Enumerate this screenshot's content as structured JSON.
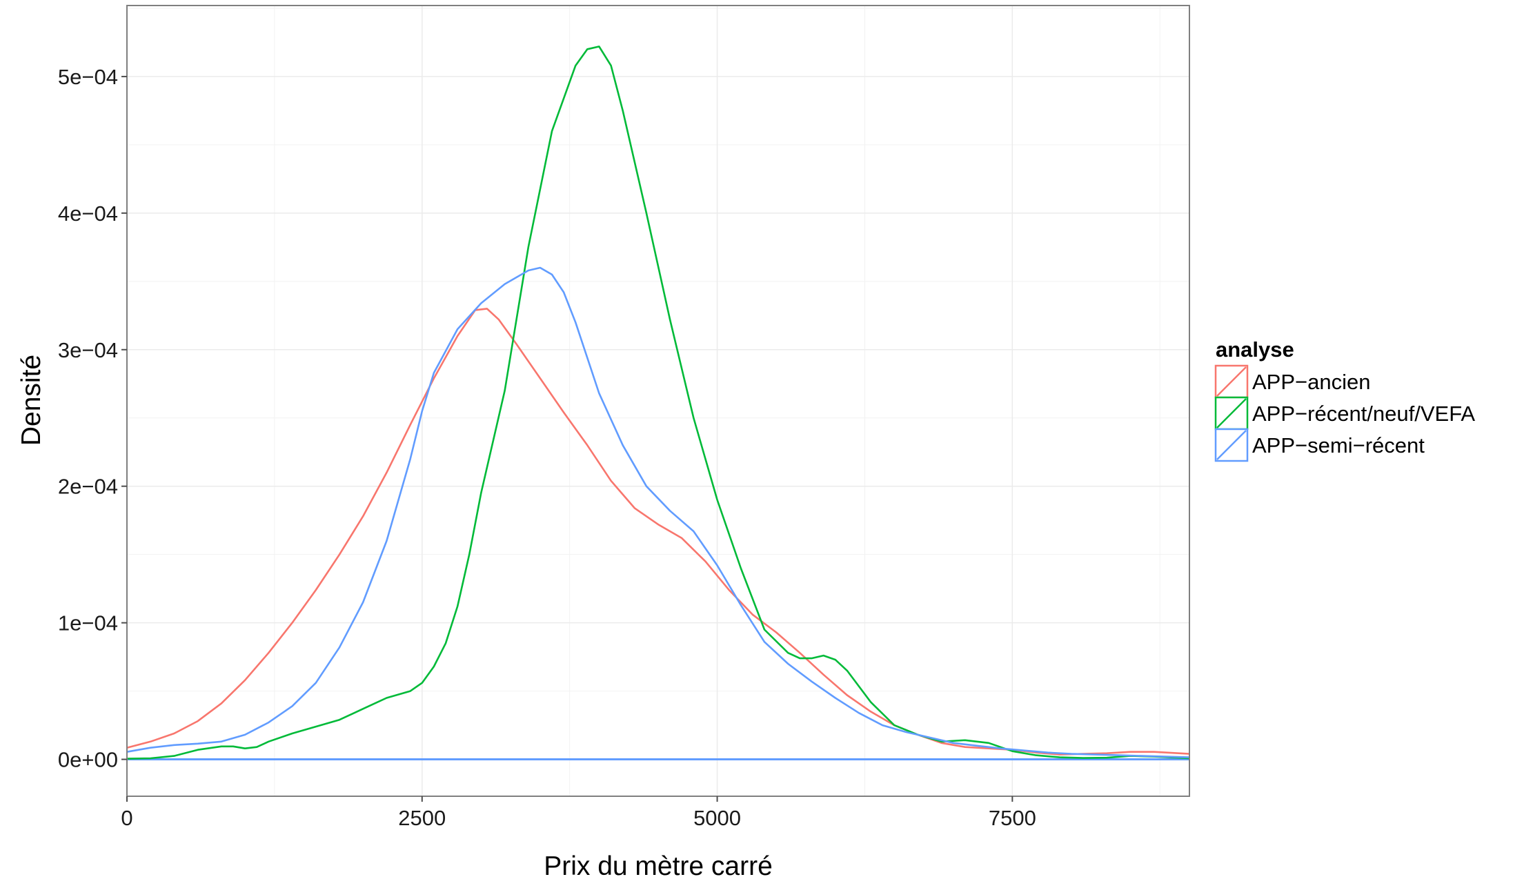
{
  "chart_data": {
    "type": "line",
    "title": "",
    "xlabel": "Prix du mètre carré",
    "ylabel": "Densité",
    "xlim": [
      0,
      9000
    ],
    "ylim": [
      -2.7e-05,
      0.000552
    ],
    "grid": true,
    "x_ticks": [
      {
        "value": 0,
        "label": "0"
      },
      {
        "value": 2500,
        "label": "2500"
      },
      {
        "value": 5000,
        "label": "5000"
      },
      {
        "value": 7500,
        "label": "7500"
      }
    ],
    "y_ticks": [
      {
        "value": 0,
        "label": "0e+00"
      },
      {
        "value": 0.0001,
        "label": "1e−04"
      },
      {
        "value": 0.0002,
        "label": "2e−04"
      },
      {
        "value": 0.0003,
        "label": "3e−04"
      },
      {
        "value": 0.0004,
        "label": "4e−04"
      },
      {
        "value": 0.0005,
        "label": "5e−04"
      }
    ],
    "legend": {
      "title": "analyse",
      "position": "right"
    },
    "series": [
      {
        "name": "APP−ancien",
        "color": "#f8766d",
        "points": [
          [
            0,
            8.5e-06
          ],
          [
            200,
            1.3e-05
          ],
          [
            400,
            1.9e-05
          ],
          [
            600,
            2.8e-05
          ],
          [
            800,
            4.1e-05
          ],
          [
            1000,
            5.8e-05
          ],
          [
            1200,
            7.8e-05
          ],
          [
            1400,
            0.0001
          ],
          [
            1600,
            0.000124
          ],
          [
            1800,
            0.00015
          ],
          [
            2000,
            0.000178
          ],
          [
            2200,
            0.00021
          ],
          [
            2400,
            0.000245
          ],
          [
            2600,
            0.000279
          ],
          [
            2800,
            0.00031
          ],
          [
            2950,
            0.000329
          ],
          [
            3050,
            0.00033
          ],
          [
            3150,
            0.000322
          ],
          [
            3300,
            0.000304
          ],
          [
            3500,
            0.000279
          ],
          [
            3700,
            0.000254
          ],
          [
            3900,
            0.00023
          ],
          [
            4100,
            0.000204
          ],
          [
            4300,
            0.000184
          ],
          [
            4500,
            0.000172
          ],
          [
            4700,
            0.000162
          ],
          [
            4900,
            0.000145
          ],
          [
            5100,
            0.000124
          ],
          [
            5300,
            0.000106
          ],
          [
            5500,
            9.3e-05
          ],
          [
            5700,
            7.8e-05
          ],
          [
            5900,
            6.2e-05
          ],
          [
            6100,
            4.7e-05
          ],
          [
            6300,
            3.5e-05
          ],
          [
            6500,
            2.5e-05
          ],
          [
            6700,
            1.8e-05
          ],
          [
            6900,
            1.2e-05
          ],
          [
            7100,
            9e-06
          ],
          [
            7300,
            8e-06
          ],
          [
            7500,
            7e-06
          ],
          [
            7700,
            5e-06
          ],
          [
            7900,
            3.5e-06
          ],
          [
            8100,
            4e-06
          ],
          [
            8300,
            4.5e-06
          ],
          [
            8500,
            5.5e-06
          ],
          [
            8700,
            5.5e-06
          ],
          [
            9000,
            4e-06
          ]
        ]
      },
      {
        "name": "APP−récent/neuf/VEFA",
        "color": "#00ba38",
        "points": [
          [
            0,
            5e-07
          ],
          [
            200,
            8e-07
          ],
          [
            400,
            2.5e-06
          ],
          [
            600,
            7e-06
          ],
          [
            800,
            9.5e-06
          ],
          [
            900,
            9.5e-06
          ],
          [
            1000,
            8e-06
          ],
          [
            1100,
            9e-06
          ],
          [
            1200,
            1.3e-05
          ],
          [
            1400,
            1.9e-05
          ],
          [
            1600,
            2.4e-05
          ],
          [
            1800,
            2.9e-05
          ],
          [
            2000,
            3.7e-05
          ],
          [
            2200,
            4.5e-05
          ],
          [
            2400,
            5e-05
          ],
          [
            2500,
            5.6e-05
          ],
          [
            2600,
            6.8e-05
          ],
          [
            2700,
            8.5e-05
          ],
          [
            2800,
            0.000112
          ],
          [
            2900,
            0.00015
          ],
          [
            3000,
            0.000195
          ],
          [
            3200,
            0.00027
          ],
          [
            3400,
            0.000375
          ],
          [
            3600,
            0.00046
          ],
          [
            3800,
            0.000508
          ],
          [
            3900,
            0.00052
          ],
          [
            4000,
            0.000522
          ],
          [
            4100,
            0.000508
          ],
          [
            4200,
            0.000475
          ],
          [
            4400,
            0.0004
          ],
          [
            4600,
            0.000322
          ],
          [
            4800,
            0.00025
          ],
          [
            5000,
            0.00019
          ],
          [
            5200,
            0.00014
          ],
          [
            5400,
            9.5e-05
          ],
          [
            5600,
            7.8e-05
          ],
          [
            5700,
            7.4e-05
          ],
          [
            5800,
            7.4e-05
          ],
          [
            5900,
            7.6e-05
          ],
          [
            6000,
            7.3e-05
          ],
          [
            6100,
            6.5e-05
          ],
          [
            6300,
            4.2e-05
          ],
          [
            6500,
            2.5e-05
          ],
          [
            6700,
            1.8e-05
          ],
          [
            6900,
            1.3e-05
          ],
          [
            7100,
            1.4e-05
          ],
          [
            7300,
            1.2e-05
          ],
          [
            7500,
            6e-06
          ],
          [
            7700,
            3e-06
          ],
          [
            7900,
            1.5e-06
          ],
          [
            8100,
            1e-06
          ],
          [
            8300,
            1.2e-06
          ],
          [
            8500,
            2.5e-06
          ],
          [
            8700,
            2e-06
          ],
          [
            9000,
            8e-07
          ]
        ]
      },
      {
        "name": "APP−semi−récent",
        "color": "#619cff",
        "points": [
          [
            0,
            5.5e-06
          ],
          [
            200,
            8.5e-06
          ],
          [
            400,
            1.05e-05
          ],
          [
            600,
            1.15e-05
          ],
          [
            800,
            1.3e-05
          ],
          [
            1000,
            1.8e-05
          ],
          [
            1200,
            2.7e-05
          ],
          [
            1400,
            3.9e-05
          ],
          [
            1600,
            5.6e-05
          ],
          [
            1800,
            8.2e-05
          ],
          [
            2000,
            0.000115
          ],
          [
            2200,
            0.00016
          ],
          [
            2400,
            0.00022
          ],
          [
            2500,
            0.000255
          ],
          [
            2600,
            0.000283
          ],
          [
            2800,
            0.000315
          ],
          [
            3000,
            0.000334
          ],
          [
            3200,
            0.000348
          ],
          [
            3400,
            0.000358
          ],
          [
            3500,
            0.00036
          ],
          [
            3600,
            0.000355
          ],
          [
            3700,
            0.000342
          ],
          [
            3800,
            0.00032
          ],
          [
            4000,
            0.000268
          ],
          [
            4200,
            0.00023
          ],
          [
            4400,
            0.0002
          ],
          [
            4600,
            0.000182
          ],
          [
            4800,
            0.000167
          ],
          [
            5000,
            0.000142
          ],
          [
            5200,
            0.000113
          ],
          [
            5400,
            8.6e-05
          ],
          [
            5600,
            7e-05
          ],
          [
            5800,
            5.7e-05
          ],
          [
            6000,
            4.5e-05
          ],
          [
            6200,
            3.4e-05
          ],
          [
            6400,
            2.5e-05
          ],
          [
            6600,
            2e-05
          ],
          [
            6800,
            1.6e-05
          ],
          [
            7000,
            1.2e-05
          ],
          [
            7200,
            1e-05
          ],
          [
            7400,
            8e-06
          ],
          [
            7600,
            6.5e-06
          ],
          [
            7800,
            5e-06
          ],
          [
            8000,
            4e-06
          ],
          [
            8200,
            3.5e-06
          ],
          [
            8400,
            3e-06
          ],
          [
            8600,
            2.5e-06
          ],
          [
            8800,
            2e-06
          ],
          [
            9000,
            1.5e-06
          ]
        ]
      }
    ]
  }
}
